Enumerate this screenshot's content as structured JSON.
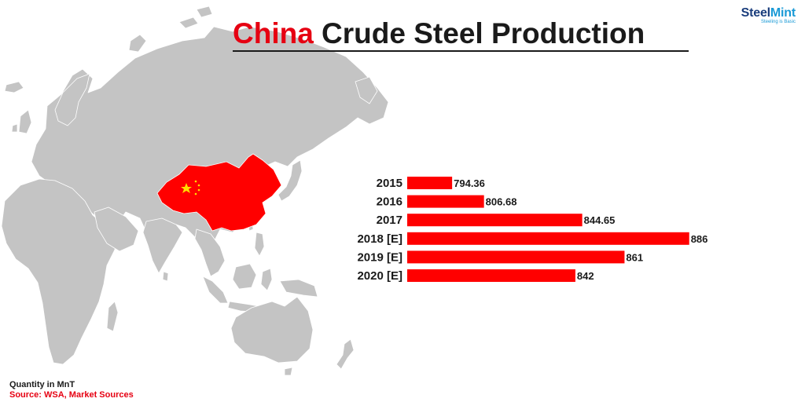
{
  "header": {
    "title_accent": "China",
    "title_rest": " Crude Steel Production"
  },
  "logo": {
    "word_a": "Steel",
    "word_b": "Mint",
    "tagline": "Steeling is Basic"
  },
  "footer": {
    "quantity_note": "Quantity in MnT",
    "source": "Source: WSA, Market Sources"
  },
  "colors": {
    "bar": "#ff0000",
    "map_land": "#c4c4c4",
    "highlight_country": "#ff0000",
    "flag_star": "#ffde00",
    "title_accent": "#e60012"
  },
  "map": {
    "highlighted_region": "China",
    "icon": "china-flag-stars-icon"
  },
  "chart_data": {
    "type": "bar",
    "orientation": "horizontal",
    "title": "China Crude Steel Production",
    "categories": [
      "2015",
      "2016",
      "2017",
      "2018 [E]",
      "2019 [E]",
      "2020 [E]"
    ],
    "values": [
      794.36,
      806.68,
      844.65,
      886,
      861,
      842
    ],
    "value_labels": [
      "794.36",
      "806.68",
      "844.65",
      "886",
      "861",
      "842"
    ],
    "unit": "MnT",
    "xlim": [
      777,
      887
    ],
    "grid": false,
    "legend": "none",
    "data_labels": true
  }
}
